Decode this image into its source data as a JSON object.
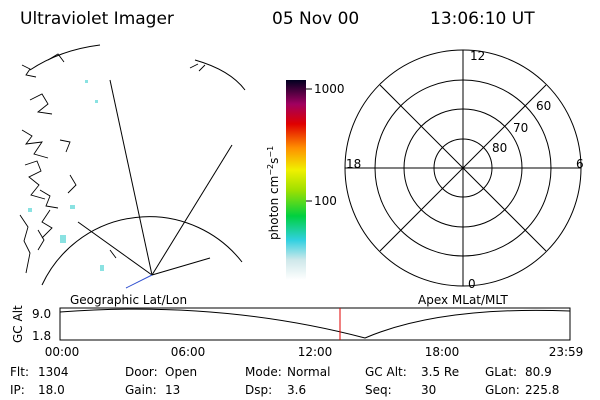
{
  "header": {
    "instrument": "Ultraviolet Imager",
    "date": "05 Nov 00",
    "time": "13:06:10 UT"
  },
  "colorbar": {
    "ticks": [
      "1000",
      "100"
    ],
    "unit": {
      "base": "photon cm",
      "exp1": "−2",
      "mid": "s",
      "exp2": "−1"
    }
  },
  "polar": {
    "mlt_labels": [
      "12",
      "6",
      "0",
      "18"
    ],
    "lat_labels": [
      "60",
      "70",
      "80"
    ]
  },
  "orbit": {
    "left_title": "Geographic Lat/Lon",
    "right_title": "Apex MLat/MLT",
    "y_title": "GC Alt",
    "y_labels": [
      "9.0",
      "1.8"
    ],
    "x_labels": [
      "00:00",
      "06:00",
      "12:00",
      "18:00",
      "23:59"
    ]
  },
  "info": [
    [
      [
        "Flt:",
        "1304"
      ],
      [
        "Door:",
        "Open"
      ],
      [
        "Mode:",
        "Normal"
      ],
      [
        "GC Alt:",
        "3.5 Re"
      ],
      [
        "GLat:",
        "80.9"
      ]
    ],
    [
      [
        "IP:",
        "18.0"
      ],
      [
        "Gain:",
        "13"
      ],
      [
        "Dsp:",
        "3.6"
      ],
      [
        "Seq:",
        "30"
      ],
      [
        "GLon:",
        "225.8"
      ]
    ]
  ]
}
